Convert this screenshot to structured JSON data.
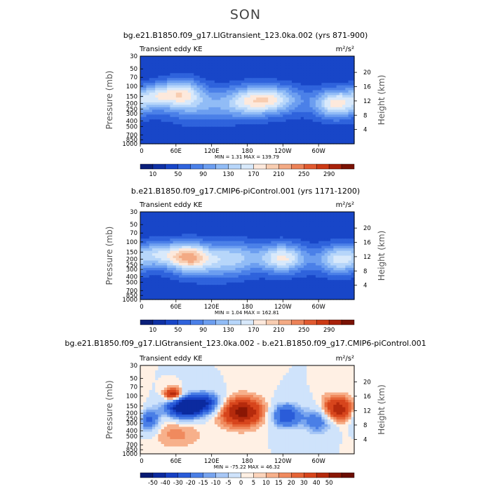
{
  "page": {
    "title": "SON"
  },
  "colors": {
    "abs_levels": [
      "#0a1f7a",
      "#0f31a5",
      "#1846c8",
      "#2f63dc",
      "#4b80e8",
      "#6c9ef0",
      "#91bcf6",
      "#b7d6fa",
      "#d8e9fb",
      "#fde9dc",
      "#f8cdb1",
      "#f3aa84",
      "#ec8257",
      "#e15a30",
      "#cc3a14",
      "#a8210a",
      "#7a1204"
    ],
    "diff_levels": [
      "#071a73",
      "#0b2a9f",
      "#1640c4",
      "#2a5cd9",
      "#4a7fe6",
      "#77a4ef",
      "#a7c7f6",
      "#cfe3fb",
      "#fff0e4",
      "#fcd4bb",
      "#f7b08b",
      "#f08a5e",
      "#e56436",
      "#d7451c",
      "#b52a0c",
      "#8a1704",
      "#6b0d02"
    ]
  },
  "chart_data": [
    {
      "type": "heatmap",
      "title": "bg.e21.B1850.f09_g17.LIGtransient_123.0ka.002 (yrs 871-900)",
      "left_label": "Transient eddy KE",
      "units": "m²/s²",
      "ylabel": "Pressure (mb)",
      "ylabel_right": "Height (km)",
      "xticks": [
        "0",
        "60E",
        "120E",
        "180",
        "120W",
        "60W"
      ],
      "xtick_lons": [
        0,
        60,
        120,
        180,
        240,
        300
      ],
      "yticks": [
        "30",
        "50",
        "70",
        "100",
        "150",
        "200",
        "250",
        "300",
        "400",
        "500",
        "700",
        "850",
        "1000"
      ],
      "ytick_values": [
        30,
        50,
        70,
        100,
        150,
        200,
        250,
        300,
        400,
        500,
        700,
        850,
        1000
      ],
      "height_ticks": [
        "4",
        "8",
        "12",
        "16",
        "20"
      ],
      "height_values": [
        4,
        8,
        12,
        16,
        20
      ],
      "minmax": "MIN =    1.31   MAX = 139.79",
      "colorbar_labels": [
        "10",
        "50",
        "90",
        "130",
        "170",
        "210",
        "250",
        "290"
      ],
      "features": [
        {
          "lon": 25,
          "p": 150,
          "amp": 95,
          "slon": 22,
          "sp": 0.35
        },
        {
          "lon": 70,
          "p": 130,
          "amp": 115,
          "slon": 24,
          "sp": 0.4
        },
        {
          "lon": 175,
          "p": 190,
          "amp": 70,
          "slon": 30,
          "sp": 0.45
        },
        {
          "lon": 220,
          "p": 170,
          "amp": 125,
          "slon": 35,
          "sp": 0.4
        },
        {
          "lon": 330,
          "p": 200,
          "amp": 140,
          "slon": 26,
          "sp": 0.4
        },
        {
          "lon": 100,
          "p": 220,
          "amp": 60,
          "slon": 40,
          "sp": 0.5
        }
      ]
    },
    {
      "type": "heatmap",
      "title": "b.e21.B1850.f09_g17.CMIP6-piControl.001 (yrs 1171-1200)",
      "left_label": "Transient eddy KE",
      "units": "m²/s²",
      "ylabel": "Pressure (mb)",
      "ylabel_right": "Height (km)",
      "xticks": [
        "0",
        "60E",
        "120E",
        "180",
        "120W",
        "60W"
      ],
      "xtick_lons": [
        0,
        60,
        120,
        180,
        240,
        300
      ],
      "yticks": [
        "30",
        "50",
        "70",
        "100",
        "150",
        "200",
        "250",
        "300",
        "400",
        "500",
        "700",
        "850",
        "1000"
      ],
      "ytick_values": [
        30,
        50,
        70,
        100,
        150,
        200,
        250,
        300,
        400,
        500,
        700,
        850,
        1000
      ],
      "height_ticks": [
        "4",
        "8",
        "12",
        "16",
        "20"
      ],
      "height_values": [
        4,
        8,
        12,
        16,
        20
      ],
      "minmax": "MIN =    1.04   MAX = 162.81",
      "colorbar_labels": [
        "10",
        "50",
        "90",
        "130",
        "170",
        "210",
        "250",
        "290"
      ],
      "features": [
        {
          "lon": 30,
          "p": 160,
          "amp": 85,
          "slon": 22,
          "sp": 0.35
        },
        {
          "lon": 80,
          "p": 180,
          "amp": 150,
          "slon": 25,
          "sp": 0.4
        },
        {
          "lon": 160,
          "p": 180,
          "amp": 70,
          "slon": 30,
          "sp": 0.45
        },
        {
          "lon": 240,
          "p": 190,
          "amp": 135,
          "slon": 28,
          "sp": 0.4
        },
        {
          "lon": 335,
          "p": 200,
          "amp": 120,
          "slon": 26,
          "sp": 0.4
        },
        {
          "lon": 120,
          "p": 230,
          "amp": 55,
          "slon": 40,
          "sp": 0.5
        }
      ]
    },
    {
      "type": "heatmap",
      "title": "bg.e21.B1850.f09_g17.LIGtransient_123.0ka.002 - b.e21.B1850.f09_g17.CMIP6-piControl.001",
      "left_label": "Transient eddy KE",
      "units": "m²/s²",
      "ylabel": "Pressure (mb)",
      "ylabel_right": "Height (km)",
      "xticks": [
        "0",
        "60E",
        "120E",
        "180",
        "120W",
        "60W"
      ],
      "xtick_lons": [
        0,
        60,
        120,
        180,
        240,
        300
      ],
      "yticks": [
        "30",
        "50",
        "70",
        "100",
        "150",
        "200",
        "250",
        "300",
        "400",
        "500",
        "700",
        "850",
        "1000"
      ],
      "ytick_values": [
        30,
        50,
        70,
        100,
        150,
        200,
        250,
        300,
        400,
        500,
        700,
        850,
        1000
      ],
      "height_ticks": [
        "4",
        "8",
        "12",
        "16",
        "20"
      ],
      "height_values": [
        4,
        8,
        12,
        16,
        20
      ],
      "minmax": "MIN =  -75.22   MAX =  46.32",
      "colorbar_labels": [
        "-50",
        "-40",
        "-30",
        "-20",
        "-15",
        "-10",
        "-5",
        "0",
        "5",
        "10",
        "15",
        "20",
        "30",
        "40",
        "50"
      ],
      "features": [
        {
          "lon": 55,
          "p": 95,
          "amp": 45,
          "slon": 10,
          "sp": 0.18
        },
        {
          "lon": 75,
          "p": 160,
          "amp": -70,
          "slon": 22,
          "sp": 0.3
        },
        {
          "lon": 110,
          "p": 130,
          "amp": -40,
          "slon": 20,
          "sp": 0.3
        },
        {
          "lon": 15,
          "p": 260,
          "amp": -35,
          "slon": 12,
          "sp": 0.35
        },
        {
          "lon": 170,
          "p": 190,
          "amp": 45,
          "slon": 26,
          "sp": 0.4
        },
        {
          "lon": 245,
          "p": 220,
          "amp": -40,
          "slon": 18,
          "sp": 0.35
        },
        {
          "lon": 330,
          "p": 170,
          "amp": 40,
          "slon": 20,
          "sp": 0.35
        },
        {
          "lon": 300,
          "p": 260,
          "amp": -30,
          "slon": 18,
          "sp": 0.4
        },
        {
          "lon": 60,
          "p": 450,
          "amp": 12,
          "slon": 30,
          "sp": 0.4
        }
      ]
    }
  ]
}
